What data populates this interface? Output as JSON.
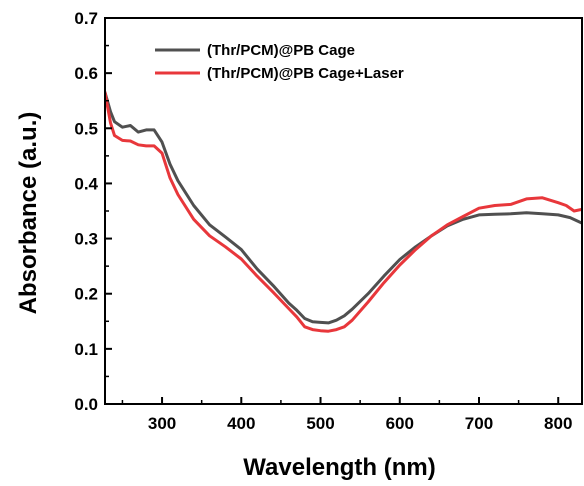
{
  "chart_data": {
    "type": "line",
    "title": "",
    "xlabel": "Wavelength (nm)",
    "ylabel": "Absorbance (a.u.)",
    "xlim": [
      228,
      830
    ],
    "ylim": [
      0.0,
      0.7
    ],
    "xticks": [
      300,
      400,
      500,
      600,
      700,
      800
    ],
    "yticks": [
      0.0,
      0.1,
      0.2,
      0.3,
      0.4,
      0.5,
      0.6,
      0.7
    ],
    "xtick_labels": [
      "300",
      "400",
      "500",
      "600",
      "700",
      "800"
    ],
    "ytick_labels": [
      "0.0",
      "0.1",
      "0.2",
      "0.3",
      "0.4",
      "0.5",
      "0.6",
      "0.7"
    ],
    "grid": false,
    "legend_position": "top-left",
    "series": [
      {
        "name": "(Thr/PCM)@PB Cage",
        "color": "#505050",
        "x": [
          228,
          235,
          240,
          250,
          260,
          270,
          280,
          290,
          300,
          310,
          320,
          340,
          360,
          380,
          400,
          420,
          440,
          460,
          470,
          480,
          490,
          500,
          510,
          520,
          530,
          540,
          560,
          580,
          600,
          620,
          640,
          660,
          680,
          700,
          720,
          740,
          760,
          780,
          800,
          815,
          830
        ],
        "y": [
          0.565,
          0.53,
          0.512,
          0.502,
          0.505,
          0.493,
          0.497,
          0.497,
          0.475,
          0.435,
          0.405,
          0.36,
          0.325,
          0.303,
          0.28,
          0.245,
          0.215,
          0.183,
          0.17,
          0.155,
          0.149,
          0.148,
          0.147,
          0.152,
          0.16,
          0.172,
          0.2,
          0.232,
          0.262,
          0.285,
          0.305,
          0.323,
          0.335,
          0.343,
          0.344,
          0.345,
          0.347,
          0.345,
          0.343,
          0.338,
          0.328
        ]
      },
      {
        "name": "(Thr/PCM)@PB Cage+Laser",
        "color": "#e8373b",
        "x": [
          228,
          235,
          240,
          250,
          260,
          270,
          280,
          290,
          300,
          310,
          320,
          340,
          360,
          380,
          400,
          420,
          440,
          460,
          470,
          480,
          490,
          500,
          510,
          520,
          530,
          540,
          560,
          580,
          600,
          620,
          640,
          660,
          680,
          700,
          720,
          740,
          760,
          780,
          800,
          810,
          820,
          830
        ],
        "y": [
          0.565,
          0.51,
          0.487,
          0.478,
          0.477,
          0.47,
          0.468,
          0.468,
          0.455,
          0.41,
          0.38,
          0.335,
          0.305,
          0.285,
          0.263,
          0.232,
          0.203,
          0.173,
          0.158,
          0.14,
          0.135,
          0.133,
          0.132,
          0.135,
          0.14,
          0.152,
          0.185,
          0.22,
          0.252,
          0.28,
          0.305,
          0.325,
          0.34,
          0.355,
          0.36,
          0.362,
          0.372,
          0.374,
          0.365,
          0.36,
          0.35,
          0.353
        ]
      }
    ]
  }
}
